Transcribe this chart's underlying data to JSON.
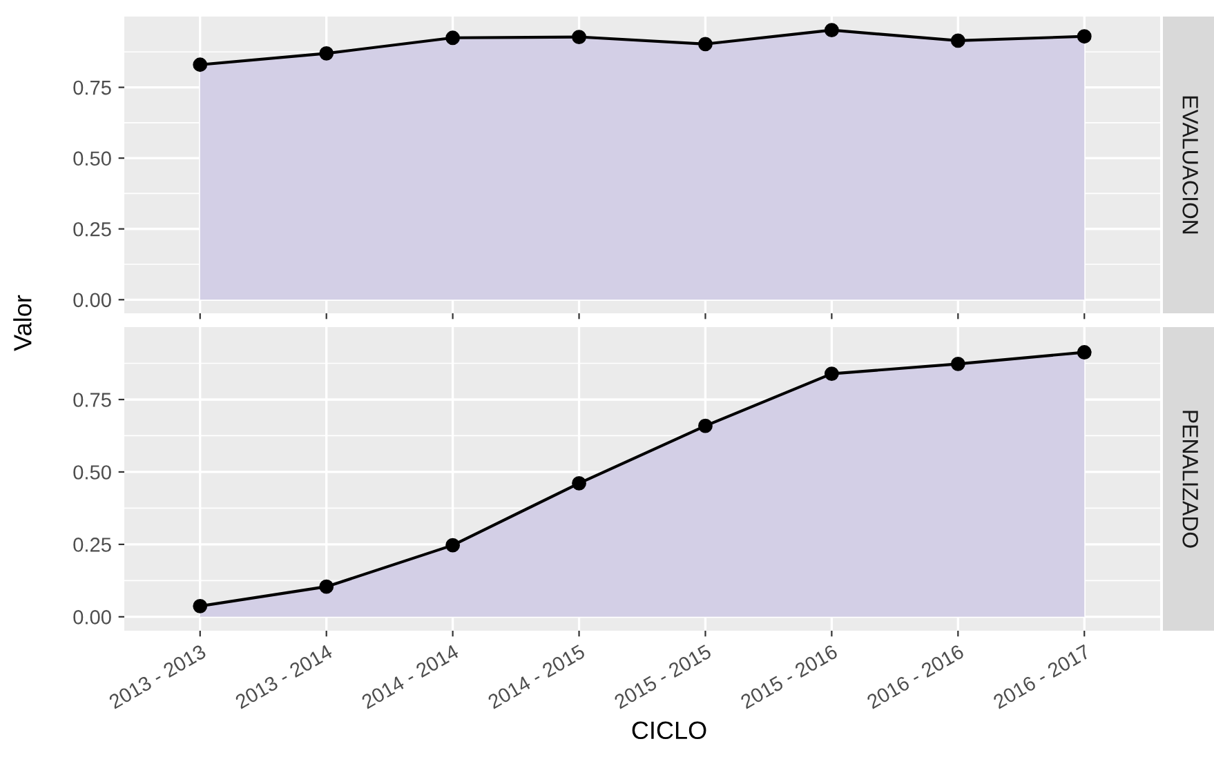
{
  "chart_data": [
    {
      "type": "area",
      "annotations": [
        "EVALUACION"
      ],
      "ylabel": "Valor",
      "categories": [
        null,
        null,
        null,
        null,
        null,
        null,
        null,
        null
      ],
      "series": [
        {
          "color": "#d3cfe6",
          "values": [
            0.83,
            0.87,
            0.925,
            0.928,
            0.903,
            0.952,
            0.915,
            0.93
          ]
        }
      ],
      "ylim": [
        -0.048,
        1.0
      ],
      "yticks": [
        {
          "value": 0,
          "label": "0.00"
        },
        {
          "value": 0.25,
          "label": "0.25"
        },
        {
          "value": 0.5,
          "label": "0.50"
        },
        {
          "value": 0.75,
          "label": "0.75"
        }
      ],
      "grid": true,
      "marker": "circle",
      "tick_labels": "y"
    },
    {
      "type": "area",
      "annotations": [
        "PENALIZADO"
      ],
      "xlabel": "CICLO",
      "categories": [
        "2013 - 2013",
        "2013 - 2014",
        "2014 - 2014",
        "2014 - 2015",
        "2015 - 2015",
        "2015 - 2016",
        "2016 - 2016",
        "2016 - 2017"
      ],
      "series": [
        {
          "color": "#d3cfe6",
          "values": [
            0.037,
            0.104,
            0.247,
            0.461,
            0.659,
            0.839,
            0.873,
            0.913
          ]
        }
      ],
      "ylim": [
        -0.048,
        1.0
      ],
      "yticks": [
        {
          "value": 0,
          "label": "0.00"
        },
        {
          "value": 0.25,
          "label": "0.25"
        },
        {
          "value": 0.5,
          "label": "0.50"
        },
        {
          "value": 0.75,
          "label": "0.75"
        }
      ],
      "grid": true,
      "marker": "circle"
    }
  ]
}
